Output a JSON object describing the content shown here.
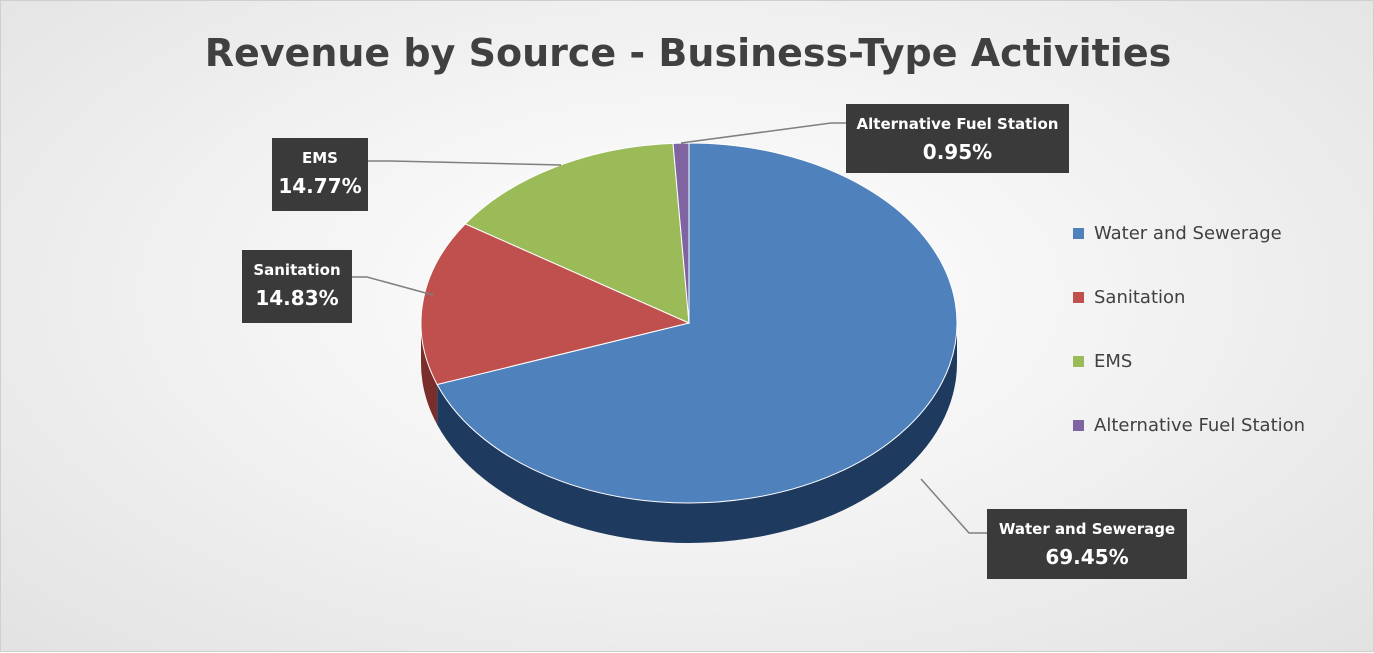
{
  "chart_data": {
    "type": "pie",
    "title": "Revenue by Source - Business-Type Activities",
    "slices": [
      {
        "label": "Water and Sewerage",
        "value": 69.45,
        "display": "69.45%",
        "color": "#4f81bd",
        "side": "#1f3a5f"
      },
      {
        "label": "Sanitation",
        "value": 14.83,
        "display": "14.83%",
        "color": "#c0504d",
        "side": "#7a2e2c"
      },
      {
        "label": "EMS",
        "value": 14.77,
        "display": "14.77%",
        "color": "#9bbb59",
        "side": "#5f7a2e"
      },
      {
        "label": "Alternative Fuel Station",
        "value": 0.95,
        "display": "0.95%",
        "color": "#8064a2",
        "side": "#4b3a63"
      }
    ],
    "legend_position": "right",
    "label_style": "callout",
    "three_d": true
  }
}
